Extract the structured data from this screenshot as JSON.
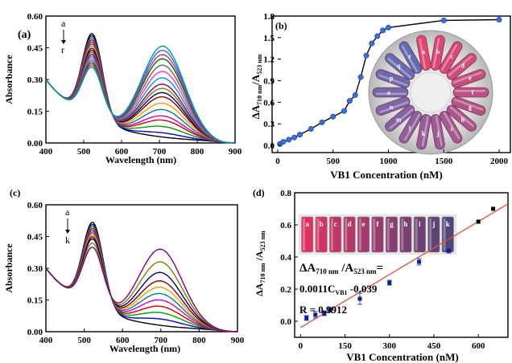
{
  "figure": {
    "panels": {
      "a": {
        "label": "(a)",
        "ylabel": "Absorbance",
        "xlabel": "Wavelength (nm)",
        "arrow_top": "a",
        "arrow_bottom": "r"
      },
      "b": {
        "label": "(b)",
        "xlabel": "VB1 Concentration (nM)",
        "photo_letters": [
          "a",
          "b",
          "c",
          "d",
          "e",
          "f",
          "g",
          "h",
          "i",
          "j",
          "k",
          "l",
          "m",
          "n",
          "o",
          "p",
          "q",
          "r"
        ]
      },
      "c": {
        "label": "(c)",
        "ylabel": "Absorbance",
        "xlabel": "Wavelength (nm)",
        "arrow_top": "a",
        "arrow_bottom": "k"
      },
      "d": {
        "label": "(d)",
        "xlabel": "VB1 Concentration (nM)",
        "equation_line1": "= ",
        "equation_line2": "0.0011C",
        "equation_sub": "VB1",
        "equation_tail": " -0.039",
        "r_text": "R = 0.9912",
        "photo_letters": [
          "a",
          "b",
          "c",
          "d",
          "e",
          "f",
          "g",
          "h",
          "i",
          "j",
          "k"
        ]
      }
    }
  },
  "colors": {
    "spectra_a": [
      "#000000",
      "#0000cc",
      "#00a000",
      "#cc0000",
      "#cc00cc",
      "#008080",
      "#ff9900",
      "#800000",
      "#000080",
      "#808000",
      "#800080",
      "#0099cc",
      "#ff33cc",
      "#666666",
      "#006600",
      "#cc3366",
      "#3366ff",
      "#009999"
    ],
    "spectra_c": [
      "#000000",
      "#0000cc",
      "#00a000",
      "#cc0000",
      "#cc00cc",
      "#008080",
      "#ff9900",
      "#800000",
      "#000080",
      "#808000",
      "#800080"
    ],
    "line_b": "#000000",
    "marker_b": "#3a6fd8",
    "fit_line_d": "#e0503c",
    "marker_d": "#1a1a8c"
  },
  "chart_data": [
    {
      "type": "line",
      "x_ticks": [
        400,
        500,
        600,
        700,
        800,
        900
      ],
      "y_ticks": [
        "0.00",
        "0.15",
        "0.30",
        "0.45",
        "0.60"
      ],
      "xlim": [
        400,
        900
      ],
      "ylim": [
        0,
        0.6
      ],
      "xlabel": "Wavelength (nm)",
      "ylabel": "Absorbance",
      "series_count": 18,
      "peak1_nm": 523,
      "peak1_values": [
        0.58,
        0.57,
        0.56,
        0.55,
        0.54,
        0.53,
        0.52,
        0.51,
        0.5,
        0.49,
        0.48,
        0.47,
        0.46,
        0.45,
        0.44,
        0.43,
        0.42,
        0.42
      ],
      "peak2_nm": 710,
      "peak2_values": [
        0.0,
        0.02,
        0.05,
        0.08,
        0.1,
        0.13,
        0.16,
        0.19,
        0.21,
        0.23,
        0.25,
        0.28,
        0.31,
        0.34,
        0.37,
        0.39,
        0.41,
        0.43
      ]
    },
    {
      "type": "scatter",
      "x": [
        20,
        50,
        100,
        150,
        200,
        300,
        400,
        500,
        600,
        650,
        700,
        750,
        800,
        850,
        900,
        950,
        1000,
        1500,
        2000
      ],
      "y": [
        0.02,
        0.05,
        0.08,
        0.11,
        0.15,
        0.23,
        0.32,
        0.4,
        0.48,
        0.62,
        0.7,
        0.95,
        1.25,
        1.42,
        1.52,
        1.6,
        1.64,
        1.74,
        1.75
      ],
      "xlim": [
        0,
        2000
      ],
      "ylim": [
        -0.1,
        1.8
      ],
      "x_ticks": [
        0,
        500,
        1000,
        1500,
        2000
      ],
      "y_ticks": [
        "0.0",
        "0.3",
        "0.6",
        "0.9",
        "1.2",
        "1.5",
        "1.8"
      ],
      "xlabel": "VB1 Concentration (nM)"
    },
    {
      "type": "line",
      "x_ticks": [
        400,
        500,
        600,
        700,
        800,
        900
      ],
      "y_ticks": [
        "0.00",
        "0.15",
        "0.30",
        "0.45",
        "0.60"
      ],
      "xlim": [
        400,
        900
      ],
      "ylim": [
        0,
        0.6
      ],
      "xlabel": "Wavelength (nm)",
      "ylabel": "Absorbance",
      "series_count": 11,
      "peak1_nm": 523,
      "peak1_values": [
        0.58,
        0.57,
        0.56,
        0.55,
        0.54,
        0.53,
        0.52,
        0.51,
        0.5,
        0.48,
        0.46
      ],
      "peak2_nm": 700,
      "peak2_values": [
        0.0,
        0.03,
        0.06,
        0.09,
        0.12,
        0.15,
        0.18,
        0.21,
        0.25,
        0.3,
        0.36
      ]
    },
    {
      "type": "scatter",
      "x": [
        20,
        50,
        80,
        100,
        200,
        300,
        400,
        500,
        600,
        650
      ],
      "y": [
        0.02,
        0.04,
        0.05,
        0.07,
        0.14,
        0.24,
        0.37,
        0.44,
        0.62,
        0.7
      ],
      "err": [
        0.015,
        0.02,
        0.015,
        0.015,
        0.035,
        0.015,
        0.02,
        0.015,
        0,
        0
      ],
      "fit": {
        "slope": 0.0011,
        "intercept": -0.039
      },
      "xlim": [
        -20,
        700
      ],
      "ylim": [
        -0.1,
        0.8
      ],
      "x_ticks": [
        0,
        150,
        300,
        450,
        600
      ],
      "y_ticks": [
        "0.0",
        "0.2",
        "0.4",
        "0.6",
        "0.8"
      ],
      "xlabel": "VB1 Concentration (nM)"
    }
  ]
}
